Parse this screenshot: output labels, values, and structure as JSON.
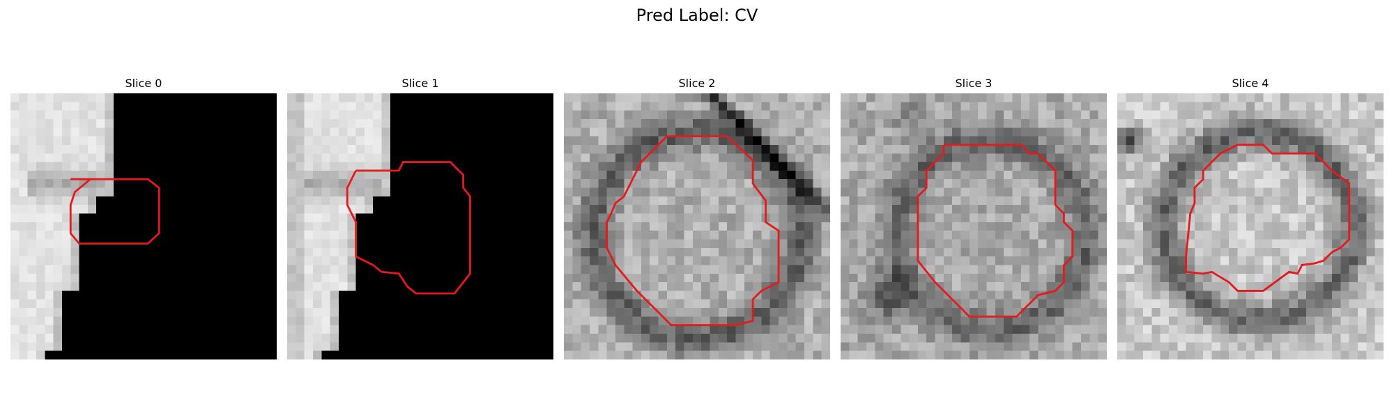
{
  "figure": {
    "suptitle": "Pred Label: CV",
    "contour_color": "#e41a1c",
    "panels": [
      {
        "title": "Slice 0"
      },
      {
        "title": "Slice 1"
      },
      {
        "title": "Slice 2"
      },
      {
        "title": "Slice 3"
      },
      {
        "title": "Slice 4"
      }
    ]
  }
}
